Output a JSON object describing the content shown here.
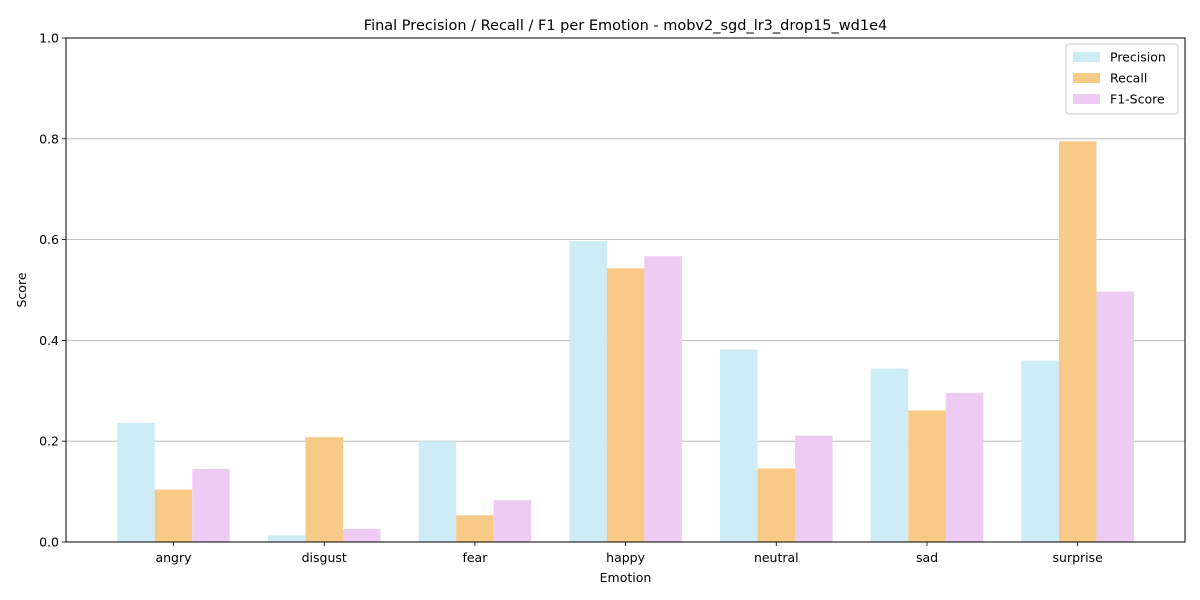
{
  "chart_data": {
    "type": "bar",
    "title": "Final Precision / Recall / F1 per Emotion - mobv2_sgd_lr3_drop15_wd1e4",
    "xlabel": "Emotion",
    "ylabel": "Score",
    "ylim": [
      0,
      1.0
    ],
    "yticks": [
      "0.0",
      "0.2",
      "0.4",
      "0.6",
      "0.8",
      "1.0"
    ],
    "grid": "horizontal",
    "legend_position": "top-right",
    "categories": [
      "angry",
      "disgust",
      "fear",
      "happy",
      "neutral",
      "sad",
      "surprise"
    ],
    "series": [
      {
        "name": "Precision",
        "color": "#cdecf6",
        "values": [
          0.236,
          0.013,
          0.2,
          0.597,
          0.382,
          0.344,
          0.36
        ]
      },
      {
        "name": "Recall",
        "color": "#f8ca88",
        "values": [
          0.104,
          0.208,
          0.053,
          0.543,
          0.146,
          0.261,
          0.795
        ]
      },
      {
        "name": "F1-Score",
        "color": "#eecbf2",
        "values": [
          0.145,
          0.026,
          0.083,
          0.567,
          0.211,
          0.296,
          0.497
        ]
      }
    ]
  }
}
